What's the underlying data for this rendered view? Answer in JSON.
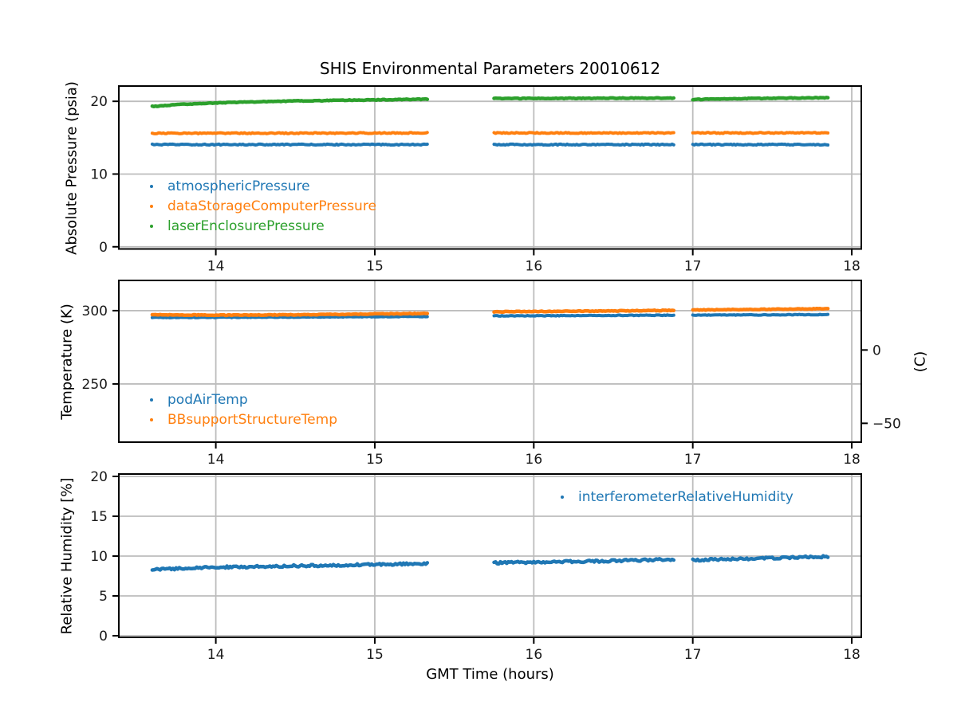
{
  "figure": {
    "background": "#ffffff",
    "grid_color": "#bdbdbd",
    "spine_color": "#000000",
    "tick_label_color": "#1a1a1a"
  },
  "chart_data": [
    {
      "type": "scatter",
      "title": "SHIS Environmental Parameters 20010612",
      "ylabel": "Absolute Pressure (psia)",
      "xlim": [
        13.39,
        18.06
      ],
      "ylim": [
        -0.3,
        22.1
      ],
      "xticks": [
        14,
        15,
        16,
        17,
        18
      ],
      "yticks": [
        0,
        10,
        20
      ],
      "grid": true,
      "legend_position": "lower left inside",
      "series": [
        {
          "name": "atmosphericPressure",
          "color": "#1f77b4",
          "linewidth": 4,
          "noise": 0.07,
          "segments": [
            {
              "x": [
                13.6,
                15.33
              ],
              "v": [
                14.05,
                14.05
              ]
            },
            {
              "x": [
                15.75,
                16.88
              ],
              "v": [
                14.05,
                14.05
              ]
            },
            {
              "x": [
                17.0,
                17.85
              ],
              "v": [
                14.05,
                14.05
              ]
            }
          ]
        },
        {
          "name": "dataStorageComputerPressure",
          "color": "#ff7f0e",
          "linewidth": 4,
          "noise": 0.07,
          "segments": [
            {
              "x": [
                13.6,
                15.33
              ],
              "v": [
                15.6,
                15.65
              ]
            },
            {
              "x": [
                15.75,
                16.88
              ],
              "v": [
                15.65,
                15.65
              ]
            },
            {
              "x": [
                17.0,
                17.85
              ],
              "v": [
                15.65,
                15.65
              ]
            }
          ]
        },
        {
          "name": "laserEnclosurePressure",
          "color": "#2ca02c",
          "linewidth": 4.5,
          "noise": 0.05,
          "segments": [
            {
              "x": [
                13.6,
                13.8,
                14.1,
                14.5,
                15.0,
                15.33
              ],
              "v": [
                19.3,
                19.6,
                19.85,
                20.05,
                20.2,
                20.3
              ]
            },
            {
              "x": [
                15.75,
                16.88
              ],
              "v": [
                20.38,
                20.45
              ]
            },
            {
              "x": [
                17.0,
                17.3,
                17.85
              ],
              "v": [
                20.25,
                20.38,
                20.5
              ]
            }
          ]
        }
      ]
    },
    {
      "type": "scatter",
      "ylabel": "Temperature (K)",
      "ylabel_right": "(C)",
      "xlim": [
        13.39,
        18.06
      ],
      "ylim": [
        210.3,
        320.6
      ],
      "xticks": [
        14,
        15,
        16,
        17,
        18
      ],
      "yticks": [
        250,
        300
      ],
      "yticks_right": [
        {
          "label": "0",
          "kelvin": 273.15
        },
        {
          "label": "−50",
          "kelvin": 223.15
        }
      ],
      "grid": true,
      "legend_position": "lower left inside",
      "series": [
        {
          "name": "podAirTemp",
          "color": "#1f77b4",
          "linewidth": 4,
          "noise": 0.22,
          "segments": [
            {
              "x": [
                13.6,
                14.5,
                15.33
              ],
              "v": [
                295.3,
                295.6,
                296.0
              ]
            },
            {
              "x": [
                15.75,
                16.88
              ],
              "v": [
                296.4,
                296.9
              ]
            },
            {
              "x": [
                17.0,
                17.85
              ],
              "v": [
                296.9,
                297.3
              ]
            }
          ]
        },
        {
          "name": "BBsupportStructureTemp",
          "color": "#ff7f0e",
          "linewidth": 4.5,
          "noise": 0.25,
          "segments": [
            {
              "x": [
                13.6,
                14.0,
                14.6,
                15.0,
                15.33
              ],
              "v": [
                297.3,
                296.9,
                297.2,
                297.7,
                298.1
              ]
            },
            {
              "x": [
                15.75,
                16.4,
                16.88
              ],
              "v": [
                299.2,
                299.7,
                300.2
              ]
            },
            {
              "x": [
                17.0,
                17.5,
                17.85
              ],
              "v": [
                300.4,
                300.9,
                301.4
              ]
            }
          ]
        }
      ]
    },
    {
      "type": "scatter",
      "ylabel": "Relative Humidity [%]",
      "xlabel": "GMT Time (hours)",
      "xlim": [
        13.39,
        18.06
      ],
      "ylim": [
        -0.2,
        20.3
      ],
      "xticks": [
        14,
        15,
        16,
        17,
        18
      ],
      "yticks": [
        0,
        5,
        10,
        15,
        20
      ],
      "grid": true,
      "legend_position": "upper right inside",
      "series": [
        {
          "name": "interferometerRelativeHumidity",
          "color": "#1f77b4",
          "linewidth": 4.5,
          "noise": 0.13,
          "segments": [
            {
              "x": [
                13.6,
                14.0,
                14.6,
                15.33
              ],
              "v": [
                8.3,
                8.6,
                8.8,
                9.05
              ]
            },
            {
              "x": [
                15.75,
                16.5,
                16.88
              ],
              "v": [
                9.15,
                9.4,
                9.6
              ]
            },
            {
              "x": [
                17.0,
                17.5,
                17.85
              ],
              "v": [
                9.5,
                9.75,
                9.95
              ]
            }
          ]
        }
      ]
    }
  ]
}
